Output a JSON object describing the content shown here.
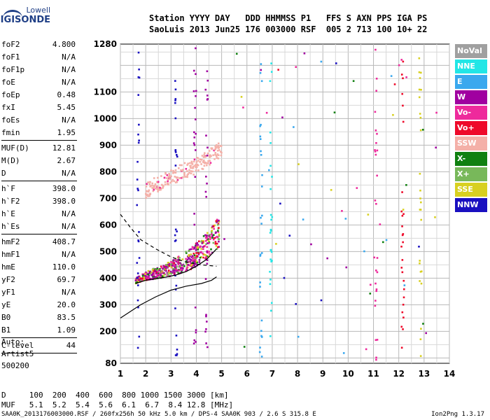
{
  "logo": {
    "line1": "Lowell",
    "line2": "DIGISONDE"
  },
  "header": {
    "line1": "Station YYYY DAY   DDD HHMMSS P1   FFS S AXN PPS IGA PS",
    "line2": "SaoLuis 2013 Jun25 176 003000 RSF  005 2 713 100 10+ 22"
  },
  "params": [
    {
      "k": "foF2",
      "v": "4.800"
    },
    {
      "k": "foF1",
      "v": "N/A"
    },
    {
      "k": "foF1p",
      "v": "N/A"
    },
    {
      "k": "foE",
      "v": "N/A"
    },
    {
      "k": "foEp",
      "v": "0.48"
    },
    {
      "k": "fxI",
      "v": "5.45"
    },
    {
      "k": "foEs",
      "v": "N/A"
    },
    {
      "k": "fmin",
      "v": "1.95"
    },
    {
      "k": "---",
      "v": ""
    },
    {
      "k": "MUF(D)",
      "v": "12.81"
    },
    {
      "k": "M(D)",
      "v": "2.67"
    },
    {
      "k": "D",
      "v": "N/A"
    },
    {
      "k": "---",
      "v": ""
    },
    {
      "k": "h`F",
      "v": "398.0"
    },
    {
      "k": "h`F2",
      "v": "398.0"
    },
    {
      "k": "h`E",
      "v": "N/A"
    },
    {
      "k": "h`Es",
      "v": "N/A"
    },
    {
      "k": "---",
      "v": ""
    },
    {
      "k": "hmF2",
      "v": "408.7"
    },
    {
      "k": "hmF1",
      "v": "N/A"
    },
    {
      "k": "hmE",
      "v": "110.0"
    },
    {
      "k": "yF2",
      "v": "69.7"
    },
    {
      "k": "yF1",
      "v": "N/A"
    },
    {
      "k": "yE",
      "v": "20.0"
    },
    {
      "k": "B0",
      "v": "83.5"
    },
    {
      "k": "B1",
      "v": "1.09"
    },
    {
      "k": "---",
      "v": ""
    },
    {
      "k": "C-level",
      "v": "44"
    },
    {
      "k": "---",
      "v": ""
    }
  ],
  "auto": {
    "line1": "Auto:",
    "line2": "Artist5",
    "line3": "500200"
  },
  "muf_table": {
    "d_line": "D     100  200  400  600  800 1000 1500 3000 [km]",
    "muf_line": "MUF   5.1  5.2  5.4  5.6  6.1  6.7  8.4 12.8 [MHz]"
  },
  "footer": "SAA0K_2013176003000.RSF / 260fx256h 50 kHz 5.0 km / DPS-4 SAA0K 903 / 2.6 S 315.8 E",
  "version": "Ion2Png 1.3.17",
  "legend": [
    {
      "label": "NoVal",
      "color": "#a0a0a0"
    },
    {
      "label": "NNE",
      "color": "#22e6e6"
    },
    {
      "label": "E",
      "color": "#3aa8ee"
    },
    {
      "label": "W",
      "color": "#a000a0"
    },
    {
      "label": "Vo-",
      "color": "#ee2a9c"
    },
    {
      "label": "Vo+",
      "color": "#ee0a2a"
    },
    {
      "label": "SSW",
      "color": "#f4b0a8"
    },
    {
      "label": "X-",
      "color": "#108010"
    },
    {
      "label": "X+",
      "color": "#78b85a"
    },
    {
      "label": "SSE",
      "color": "#d8d020"
    },
    {
      "label": "NNW",
      "color": "#1a10c0"
    }
  ],
  "chart_data": {
    "type": "scatter",
    "title": "",
    "xlabel": "",
    "ylabel": "",
    "xlim": [
      1,
      14
    ],
    "ylim": [
      80,
      1280
    ],
    "x_ticks": [
      "1",
      "2",
      "3",
      "4",
      "5",
      "6",
      "7",
      "8",
      "9",
      "10",
      "11",
      "12",
      "13",
      "14"
    ],
    "y_ticks": [
      "80",
      "200",
      "300",
      "400",
      "500",
      "600",
      "700",
      "800",
      "900",
      "1000",
      "1100",
      "1280"
    ],
    "traces": {
      "o_trace": {
        "freq_mhz": [
          1.6,
          2.0,
          2.4,
          2.8,
          3.2,
          3.6,
          4.0,
          4.4,
          4.8
        ],
        "height_km": [
          380,
          392,
          398,
          404,
          412,
          425,
          445,
          470,
          510
        ]
      },
      "x_trace": {
        "freq_mhz": [
          2.0,
          2.6,
          3.2,
          3.8,
          4.4,
          4.8,
          5.0
        ],
        "height_km": [
          730,
          760,
          790,
          815,
          845,
          875,
          890
        ]
      },
      "true_height_profile": {
        "freq_mhz": [
          1.0,
          1.8,
          2.4,
          3.0,
          3.6,
          4.2,
          4.6,
          4.8
        ],
        "height_km": [
          250,
          300,
          330,
          355,
          370,
          380,
          392,
          405
        ]
      },
      "topside_dashed": {
        "freq_mhz": [
          1.0,
          1.4,
          1.8,
          2.4,
          3.0,
          3.6,
          4.2,
          4.8
        ],
        "height_km": [
          640,
          590,
          545,
          510,
          480,
          460,
          450,
          445
        ]
      }
    }
  }
}
